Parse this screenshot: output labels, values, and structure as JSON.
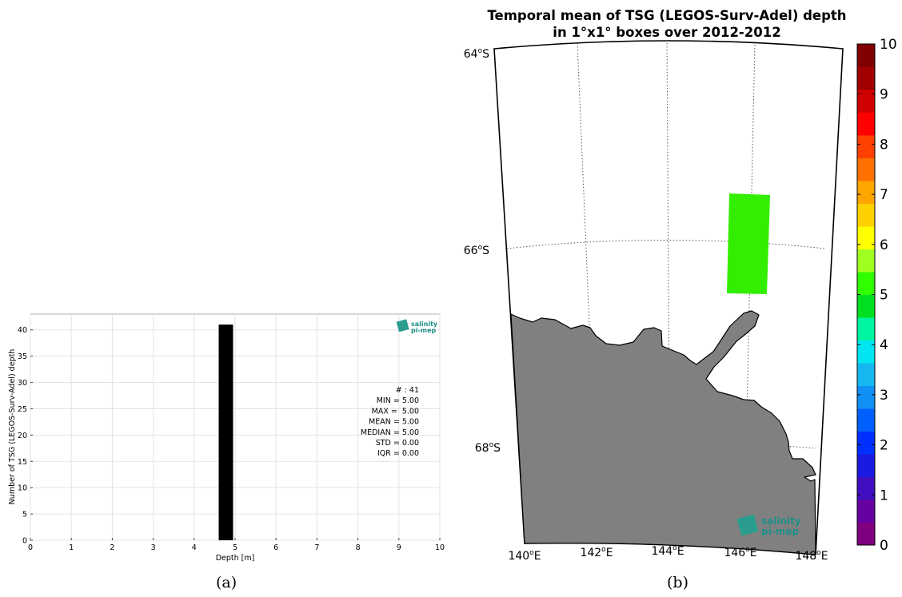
{
  "panel_a": {
    "caption": "(a)",
    "logo": {
      "line1": "salinity",
      "line2": "pi-mep"
    }
  },
  "panel_b": {
    "caption": "(b)",
    "logo": {
      "line1": "salinity",
      "line2": "pi-mep"
    }
  },
  "chart_data": [
    {
      "type": "bar",
      "title": "",
      "xlabel": "Depth [m]",
      "ylabel": "Number of TSG (LEGOS-Surv-Adel) depth",
      "xlim": [
        0,
        10
      ],
      "ylim": [
        0,
        43
      ],
      "xticks": [
        0,
        1,
        2,
        3,
        4,
        5,
        6,
        7,
        8,
        9,
        10
      ],
      "yticks": [
        0,
        5,
        10,
        15,
        20,
        25,
        30,
        35,
        40
      ],
      "grid": true,
      "bars": [
        {
          "x_start": 4.6,
          "x_end": 4.95,
          "value": 41
        }
      ],
      "bar_color": "#000000",
      "stats": [
        "# : 41",
        "MIN = 5.00",
        "MAX =  5.00",
        "MEAN = 5.00",
        "MEDIAN = 5.00",
        "STD = 0.00",
        "IQR = 0.00"
      ]
    },
    {
      "type": "heatmap",
      "title": "Temporal mean of TSG (LEGOS-Surv-Adel) depth",
      "subtitle": "in 1°x1° boxes over 2012-2012",
      "lon_range": [
        140,
        148
      ],
      "lat_range": [
        -68.8,
        -63.9
      ],
      "lon_ticks": [
        "140°E",
        "142°E",
        "144°E",
        "146°E",
        "148°E"
      ],
      "lat_ticks": [
        "64°S",
        "66°S",
        "68°S"
      ],
      "cells": [
        {
          "lon_min": 145.5,
          "lon_max": 146.5,
          "lat_min": -66.3,
          "lat_max": -65.6,
          "value": 5
        }
      ],
      "land_color": "#808080",
      "colorbar": {
        "min": 0,
        "max": 10,
        "ticks": [
          "0",
          "1",
          "2",
          "3",
          "4",
          "5",
          "6",
          "7",
          "8",
          "9",
          "10"
        ],
        "colors": [
          "#7f007f",
          "#6600a0",
          "#4010c0",
          "#1a1ae0",
          "#0030ff",
          "#0060ff",
          "#1090f5",
          "#15b8f0",
          "#00e5f0",
          "#00f5a0",
          "#00e020",
          "#30ff00",
          "#a0ff20",
          "#ffff00",
          "#ffd000",
          "#ffa500",
          "#ff7000",
          "#ff4000",
          "#ff0000",
          "#d00000",
          "#a00000",
          "#800000"
        ]
      }
    }
  ]
}
